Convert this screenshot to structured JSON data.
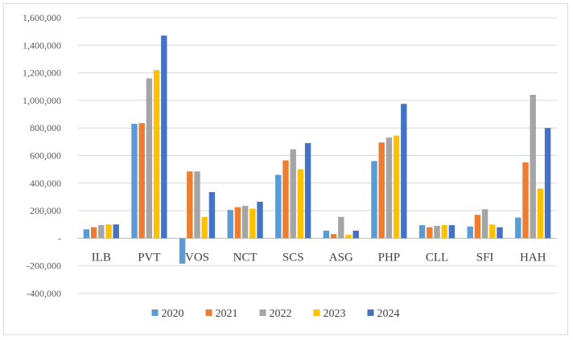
{
  "chart_data": {
    "type": "bar",
    "categories": [
      "ILB",
      "PVT",
      "VOS",
      "NCT",
      "SCS",
      "ASG",
      "PHP",
      "CLL",
      "SFI",
      "HAH"
    ],
    "series": [
      {
        "name": "2020",
        "color": "#5b9bd5",
        "values": [
          65000,
          830000,
          -185000,
          205000,
          460000,
          55000,
          560000,
          95000,
          85000,
          150000
        ]
      },
      {
        "name": "2021",
        "color": "#ed7d31",
        "values": [
          80000,
          835000,
          485000,
          225000,
          565000,
          30000,
          695000,
          80000,
          170000,
          550000
        ]
      },
      {
        "name": "2022",
        "color": "#a5a5a5",
        "values": [
          95000,
          1160000,
          485000,
          235000,
          645000,
          155000,
          730000,
          90000,
          210000,
          1040000
        ]
      },
      {
        "name": "2023",
        "color": "#ffc000",
        "values": [
          100000,
          1220000,
          155000,
          215000,
          500000,
          25000,
          745000,
          95000,
          100000,
          360000
        ]
      },
      {
        "name": "2024",
        "color": "#4472c4",
        "values": [
          100000,
          1470000,
          335000,
          265000,
          690000,
          55000,
          975000,
          95000,
          80000,
          800000
        ]
      }
    ],
    "yticks": [
      "1,600,000",
      "1,400,000",
      "1,200,000",
      "1,000,000",
      "800,000",
      "600,000",
      "400,000",
      "200,000",
      "-",
      "-200,000",
      "-400,000"
    ],
    "ytick_values": [
      1600000,
      1400000,
      1200000,
      1000000,
      800000,
      600000,
      400000,
      200000,
      0,
      -200000,
      -400000
    ],
    "ylim": [
      -400000,
      1600000
    ],
    "grid": true,
    "legend": "bottom"
  }
}
